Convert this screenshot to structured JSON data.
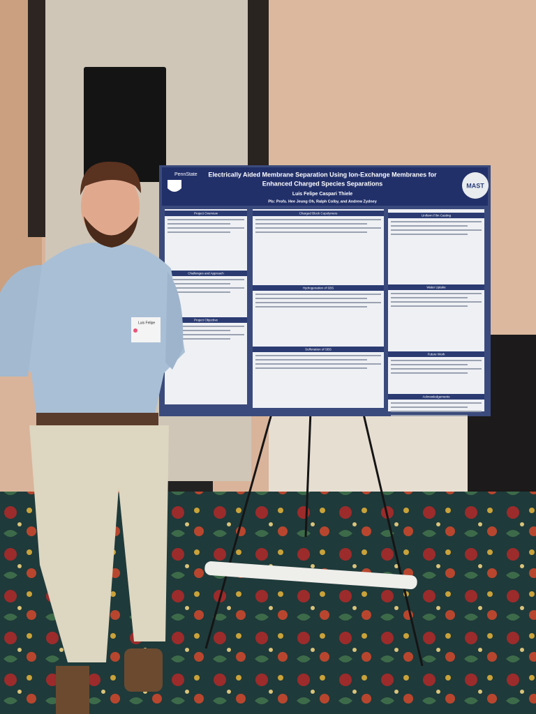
{
  "poster": {
    "logo_left": "PennState",
    "logo_right": "MAST",
    "title_lines": [
      "Electrically Aided Membrane Separation Using Ion-Exchange Membranes for",
      "Enhanced Charged Species Separations"
    ],
    "author": "Luis Felipe Caspari Thiele",
    "pis": "PIs: Profs. Hee Jeung Oh, Ralph Colby, and Andrew Zydney",
    "sections": [
      "Project Overview",
      "Challenges and Approach",
      "Project Objective",
      "Charged Block Copolymers",
      "Hydrogenation of SBS",
      "Sulfonation of SBS",
      "Uniform Film Casting",
      "Water Uptake",
      "Future Work",
      "Acknowledgements"
    ]
  },
  "badge": "Luis Felipe"
}
